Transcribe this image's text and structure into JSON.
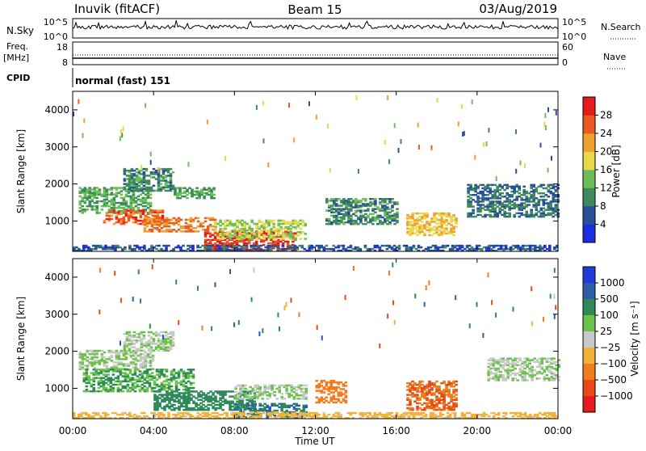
{
  "header": {
    "station": "Inuvik (fitACF)",
    "beam": "Beam 15",
    "date": "03/Aug/2019"
  },
  "nsky_panel": {
    "left_label": "N.Sky",
    "right_label": "N.Search",
    "y_ticks_left": [
      "10^5",
      "10^0"
    ],
    "y_ticks_right": [
      "10^5",
      "10^0"
    ]
  },
  "freq_panel": {
    "left_label": "Freq.",
    "left_unit": "[MHz]",
    "right_label": "Nave",
    "y_ticks_left": [
      "18",
      "8"
    ],
    "y_ticks_right": [
      "60",
      "0"
    ]
  },
  "cpid": {
    "label": "CPID",
    "value": "normal (fast) 151"
  },
  "time_axis": {
    "tick_labels": [
      "00:00",
      "04:00",
      "08:00",
      "12:00",
      "16:00",
      "20:00",
      "00:00"
    ],
    "xlabel": "Time UT"
  },
  "chart_data": [
    {
      "type": "heatmap",
      "title": "",
      "xlabel": "Time UT",
      "ylabel": "Slant Range [km]",
      "x_ticks": [
        "00:00",
        "04:00",
        "08:00",
        "12:00",
        "16:00",
        "20:00",
        "00:00"
      ],
      "y_ticks": [
        "1000",
        "2000",
        "3000",
        "4000"
      ],
      "xlim_hours": [
        0,
        24
      ],
      "ylim_km": [
        180,
        4500
      ],
      "colorbar": {
        "label": "Power [dB]",
        "ticks": [
          "4",
          "8",
          "12",
          "16",
          "20",
          "24",
          "28"
        ],
        "colors": [
          "#1a2ee0",
          "#2a4f9a",
          "#3f8a5c",
          "#6bbf59",
          "#e9d84a",
          "#f0a030",
          "#e85a20",
          "#e41a1c"
        ]
      },
      "regions": [
        {
          "t0": 0.3,
          "t1": 3.8,
          "r0": 1200,
          "r1": 1900,
          "v": 12
        },
        {
          "t0": 1.5,
          "t1": 4.5,
          "r0": 900,
          "r1": 1300,
          "v": 26
        },
        {
          "t0": 3.5,
          "t1": 7.0,
          "r0": 700,
          "r1": 1100,
          "v": 24
        },
        {
          "t0": 6.5,
          "t1": 11.0,
          "r0": 200,
          "r1": 700,
          "v": 28
        },
        {
          "t0": 2.5,
          "t1": 5.0,
          "r0": 1800,
          "r1": 2400,
          "v": 10
        },
        {
          "t0": 5.0,
          "t1": 7.0,
          "r0": 1600,
          "r1": 1900,
          "v": 12
        },
        {
          "t0": 7.0,
          "t1": 11.5,
          "r0": 500,
          "r1": 1000,
          "v": 16
        },
        {
          "t0": 16.5,
          "t1": 19.0,
          "r0": 600,
          "r1": 1200,
          "v": 20
        },
        {
          "t0": 12.5,
          "t1": 16.0,
          "r0": 900,
          "r1": 1600,
          "v": 10
        },
        {
          "t0": 19.5,
          "t1": 24.0,
          "r0": 1100,
          "r1": 2000,
          "v": 8
        },
        {
          "t0": 0.0,
          "t1": 24.0,
          "r0": 180,
          "r1": 350,
          "v": 6
        }
      ]
    },
    {
      "type": "heatmap",
      "title": "",
      "xlabel": "Time UT",
      "ylabel": "Slant Range [km]",
      "x_ticks": [
        "00:00",
        "04:00",
        "08:00",
        "12:00",
        "16:00",
        "20:00",
        "00:00"
      ],
      "y_ticks": [
        "1000",
        "2000",
        "3000",
        "4000"
      ],
      "xlim_hours": [
        0,
        24
      ],
      "ylim_km": [
        180,
        4500
      ],
      "colorbar": {
        "label": "Velocity [m s⁻¹]",
        "ticks": [
          "1000",
          "500",
          "100",
          "25",
          "−25",
          "−100",
          "−500",
          "−1000"
        ],
        "colors": [
          "#1f3ad8",
          "#2c5ea8",
          "#2f8a5a",
          "#6cc24a",
          "#c8c8c8",
          "#f2b23a",
          "#f07c1e",
          "#e84a14",
          "#e41a1c"
        ]
      },
      "regions": [
        {
          "t0": 0.3,
          "t1": 4.0,
          "r0": 1500,
          "r1": 2000,
          "v": 25
        },
        {
          "t0": 2.5,
          "t1": 5.0,
          "r0": 2000,
          "r1": 2500,
          "v": 25
        },
        {
          "t0": 0.5,
          "t1": 6.0,
          "r0": 900,
          "r1": 1500,
          "v": 100
        },
        {
          "t0": 4.0,
          "t1": 9.0,
          "r0": 400,
          "r1": 900,
          "v": 300
        },
        {
          "t0": 8.0,
          "t1": 11.5,
          "r0": 700,
          "r1": 1100,
          "v": 25
        },
        {
          "t0": 8.0,
          "t1": 11.5,
          "r0": 200,
          "r1": 600,
          "v": 500
        },
        {
          "t0": 12.0,
          "t1": 13.5,
          "r0": 600,
          "r1": 1200,
          "v": -200
        },
        {
          "t0": 16.5,
          "t1": 19.0,
          "r0": 400,
          "r1": 1200,
          "v": -500
        },
        {
          "t0": 20.5,
          "t1": 24.0,
          "r0": 1200,
          "r1": 1800,
          "v": 25
        },
        {
          "t0": 0.0,
          "t1": 24.0,
          "r0": 180,
          "r1": 350,
          "v": -50
        }
      ]
    }
  ]
}
